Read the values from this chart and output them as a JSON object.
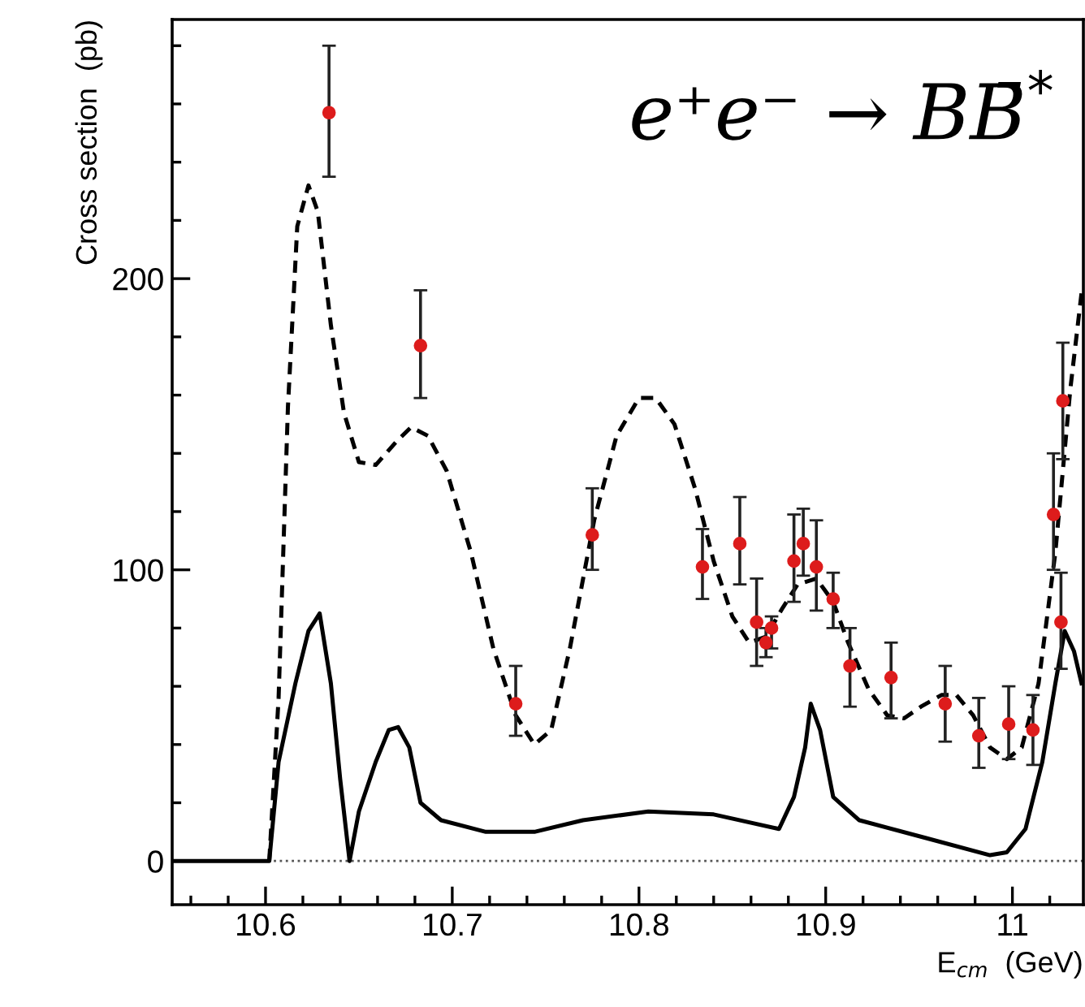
{
  "chart_data": {
    "type": "scatter",
    "xlabel": "E$_{cm}$  (GeV)",
    "ylabel": "Cross section  (pb)",
    "annotations": [
      "e⁺e⁻ → BB̄$^{*}$"
    ],
    "xlim": [
      10.55,
      11.038
    ],
    "ylim": [
      -15,
      289
    ],
    "xticks": [
      {
        "value": 10.56,
        "label": null
      },
      {
        "value": 10.58,
        "label": null
      },
      10.6,
      {
        "value": 10.62,
        "label": null
      },
      {
        "value": 10.64,
        "label": null
      },
      {
        "value": 10.66,
        "label": null
      },
      {
        "value": 10.68,
        "label": null
      },
      10.7,
      {
        "value": 10.72,
        "label": null
      },
      {
        "value": 10.74,
        "label": null
      },
      {
        "value": 10.76,
        "label": null
      },
      {
        "value": 10.78,
        "label": null
      },
      10.8,
      {
        "value": 10.82,
        "label": null
      },
      {
        "value": 10.84,
        "label": null
      },
      {
        "value": 10.86,
        "label": null
      },
      {
        "value": 10.88,
        "label": null
      },
      10.9,
      {
        "value": 10.92,
        "label": null
      },
      {
        "value": 10.94,
        "label": null
      },
      {
        "value": 10.96,
        "label": null
      },
      {
        "value": 10.98,
        "label": null
      },
      {
        "value": 11,
        "label": "11"
      },
      {
        "value": 11.02,
        "label": null
      }
    ],
    "yticks": [
      0,
      {
        "value": 20,
        "label": null
      },
      {
        "value": 40,
        "label": null
      },
      {
        "value": 60,
        "label": null
      },
      {
        "value": 80,
        "label": null
      },
      100,
      {
        "value": 120,
        "label": null
      },
      {
        "value": 140,
        "label": null
      },
      {
        "value": 160,
        "label": null
      },
      {
        "value": 180,
        "label": null
      },
      200,
      {
        "value": 220,
        "label": null
      },
      {
        "value": 240,
        "label": null
      },
      {
        "value": 260,
        "label": null
      },
      {
        "value": 280,
        "label": null
      }
    ],
    "grid": false,
    "legend": false,
    "ref_lines": [
      {
        "axis": "y",
        "value": 0,
        "line_style": "dotted",
        "color": "#555555"
      }
    ],
    "series": [
      {
        "type": "line",
        "color": "#000000",
        "line_style": "dashed",
        "marker": "none",
        "x": [
          10.602,
          10.607,
          10.612,
          10.617,
          10.623,
          10.628,
          10.635,
          10.642,
          10.65,
          10.659,
          10.67,
          10.678,
          10.687,
          10.697,
          10.71,
          10.722,
          10.734,
          10.744,
          10.753,
          10.763,
          10.776,
          10.788,
          10.8,
          10.809,
          10.819,
          10.83,
          10.84,
          10.85,
          10.859,
          10.868,
          10.877,
          10.885,
          10.895,
          10.904,
          10.912,
          10.923,
          10.933,
          10.942,
          10.951,
          10.962,
          10.97,
          10.979,
          10.988,
          10.997,
          11.005,
          11.014,
          11.023,
          11.031,
          11.037
        ],
        "values": [
          0,
          56,
          156,
          218,
          232,
          223,
          184,
          154,
          137,
          136,
          144,
          149,
          146,
          134,
          106,
          73,
          50,
          40,
          45,
          73,
          117,
          146,
          159,
          159,
          150,
          128,
          103,
          84,
          75,
          77,
          87,
          95,
          97,
          89,
          75,
          59,
          50,
          49,
          53,
          57,
          57,
          50,
          39,
          35,
          39,
          61,
          106,
          162,
          195
        ]
      },
      {
        "type": "line",
        "color": "#000000",
        "line_style": "solid",
        "marker": "none",
        "x": [
          10.55,
          10.602,
          10.607,
          10.616,
          10.623,
          10.629,
          10.635,
          10.64,
          10.645,
          10.65,
          10.659,
          10.666,
          10.671,
          10.677,
          10.683,
          10.694,
          10.718,
          10.744,
          10.77,
          10.805,
          10.84,
          10.875,
          10.883,
          10.889,
          10.892,
          10.897,
          10.904,
          10.918,
          10.953,
          10.988,
          10.997,
          11.007,
          11.016,
          11.023,
          11.028,
          11.033,
          11.037
        ],
        "values": [
          0,
          0,
          34,
          61,
          79,
          85,
          61,
          28,
          0,
          17,
          34,
          45,
          46,
          39,
          20,
          14,
          10,
          10,
          14,
          17,
          16,
          11,
          22,
          39,
          54,
          45,
          22,
          14,
          8,
          2,
          3,
          11,
          34,
          61,
          79,
          72,
          61
        ]
      },
      {
        "color": "#dd1c1c",
        "marker": "circle",
        "x": [
          10.634,
          10.683,
          10.734,
          10.775,
          10.834,
          10.854,
          10.863,
          10.868,
          10.871,
          10.883,
          10.888,
          10.895,
          10.904,
          10.913,
          10.935,
          10.964,
          10.982,
          10.998,
          11.011,
          11.022,
          11.026,
          11.027
        ],
        "values": [
          257,
          177,
          54,
          112,
          101,
          109,
          82,
          75,
          80,
          103,
          109,
          101,
          90,
          67,
          63,
          54,
          43,
          47,
          45,
          119,
          82,
          158
        ],
        "errors": [
          [
            235,
            280
          ],
          [
            159,
            196
          ],
          [
            43,
            67
          ],
          [
            100,
            128
          ],
          [
            90,
            114
          ],
          [
            95,
            125
          ],
          [
            67,
            97
          ],
          [
            70,
            80
          ],
          [
            73,
            84
          ],
          [
            89,
            119
          ],
          [
            98,
            121
          ],
          [
            86,
            117
          ],
          [
            80,
            99
          ],
          [
            53,
            80
          ],
          [
            49,
            75
          ],
          [
            41,
            67
          ],
          [
            32,
            56
          ],
          [
            35,
            60
          ],
          [
            33,
            57
          ],
          [
            100,
            140
          ],
          [
            66,
            99
          ],
          [
            138,
            178
          ]
        ]
      }
    ]
  }
}
